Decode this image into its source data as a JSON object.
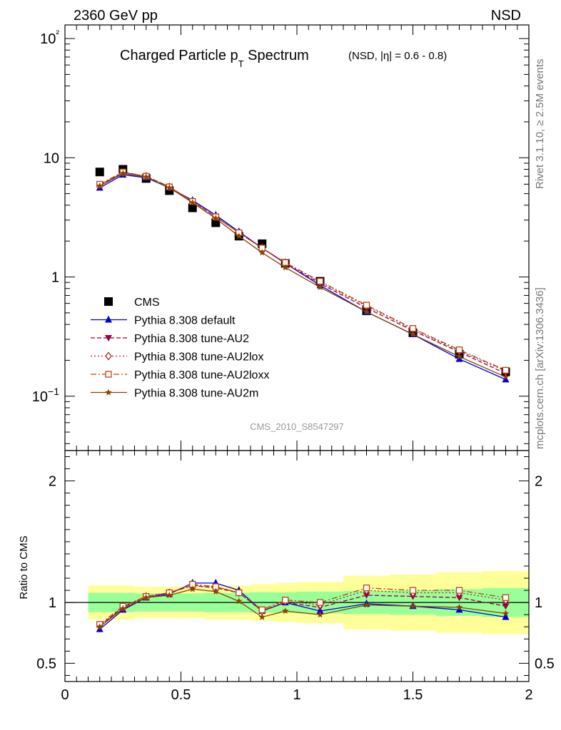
{
  "header": {
    "left_label": "2360 GeV pp",
    "right_label": "NSD",
    "side_label_top": "Rivet 3.1.10, ≥ 2.5M events",
    "side_label_bottom": "mcplots.cern.ch [arXiv:1306.3436]"
  },
  "chart_data": [
    {
      "type": "scatter",
      "title_main": "Charged Particle p",
      "title_sub": "T",
      "title_main2": " Spectrum",
      "title_extra": "(NSD, |η| = 0.6 - 0.8)",
      "watermark": "CMS_2010_S8547297",
      "scale": "log",
      "ylim": [
        0.035,
        130
      ],
      "xlim": [
        0,
        2
      ],
      "ytick_labels": [
        "10−1",
        "1",
        "10",
        "10²"
      ],
      "legend_placement": "center-left",
      "x": [
        0.15,
        0.25,
        0.35,
        0.45,
        0.55,
        0.65,
        0.75,
        0.85,
        0.95,
        1.1,
        1.3,
        1.5,
        1.7,
        1.9
      ],
      "series": [
        {
          "name": "CMS",
          "color": "#000000",
          "marker": "square",
          "line": "none",
          "values": [
            7.6,
            8.0,
            6.7,
            5.3,
            3.8,
            2.85,
            2.2,
            1.9,
            1.3,
            0.92,
            0.52,
            0.34,
            0.225,
            0.16
          ]
        },
        {
          "name": "Pythia 8.308 default",
          "color": "#0000dd",
          "marker": "triangle-up",
          "line": "solid",
          "values": [
            5.6,
            7.2,
            6.8,
            5.6,
            4.4,
            3.3,
            2.4,
            1.75,
            1.3,
            0.85,
            0.51,
            0.33,
            0.205,
            0.138
          ]
        },
        {
          "name": "Pythia 8.308 tune-AU2",
          "color": "#990044",
          "marker": "triangle-down",
          "line": "dashed",
          "values": [
            5.9,
            7.5,
            7.0,
            5.7,
            4.3,
            3.2,
            2.35,
            1.75,
            1.3,
            0.88,
            0.55,
            0.355,
            0.235,
            0.155
          ]
        },
        {
          "name": "Pythia 8.308 tune-AU2lox",
          "color": "#aa2233",
          "marker": "diamond-open",
          "line": "dotted",
          "values": [
            5.9,
            7.5,
            7.0,
            5.7,
            4.3,
            3.2,
            2.35,
            1.75,
            1.32,
            0.9,
            0.57,
            0.365,
            0.24,
            0.163
          ]
        },
        {
          "name": "Pythia 8.308 tune-AU2loxx",
          "color": "#bb4411",
          "marker": "square-open",
          "line": "dashdot",
          "values": [
            6.0,
            7.6,
            7.0,
            5.7,
            4.3,
            3.2,
            2.35,
            1.75,
            1.32,
            0.92,
            0.58,
            0.37,
            0.245,
            0.165
          ]
        },
        {
          "name": "Pythia 8.308 tune-AU2m",
          "color": "#884400",
          "marker": "star",
          "line": "solid",
          "values": [
            5.8,
            7.4,
            6.9,
            5.6,
            4.2,
            3.1,
            2.2,
            1.6,
            1.2,
            0.82,
            0.51,
            0.33,
            0.215,
            0.145
          ]
        }
      ]
    },
    {
      "type": "scatter",
      "ylabel": "Ratio to CMS",
      "ylim": [
        0.35,
        2.25
      ],
      "xlim": [
        0,
        2
      ],
      "yticks": [
        0.5,
        1,
        2
      ],
      "ytick_labels": [
        "0.5",
        "1",
        "2"
      ],
      "xticks": [
        0,
        0.5,
        1,
        1.5,
        2
      ],
      "xtick_labels": [
        "0",
        "0.5",
        "1",
        "1.5",
        "2"
      ],
      "reference": 1,
      "bins": [
        [
          0.1,
          0.2
        ],
        [
          0.2,
          0.3
        ],
        [
          0.3,
          0.4
        ],
        [
          0.4,
          0.5
        ],
        [
          0.5,
          0.6
        ],
        [
          0.6,
          0.7
        ],
        [
          0.7,
          0.8
        ],
        [
          0.8,
          0.9
        ],
        [
          0.9,
          1.0
        ],
        [
          1.0,
          1.2
        ],
        [
          1.2,
          1.4
        ],
        [
          1.4,
          1.6
        ],
        [
          1.6,
          1.8
        ],
        [
          1.8,
          2.0
        ]
      ],
      "band_inner": [
        0.08,
        0.08,
        0.075,
        0.075,
        0.075,
        0.08,
        0.08,
        0.085,
        0.085,
        0.09,
        0.095,
        0.1,
        0.11,
        0.12
      ],
      "band_outer": [
        0.14,
        0.14,
        0.13,
        0.13,
        0.13,
        0.14,
        0.14,
        0.15,
        0.16,
        0.17,
        0.22,
        0.23,
        0.25,
        0.26
      ],
      "band_inner_color": "#99ff99",
      "band_outer_color": "#ffff99",
      "x": [
        0.15,
        0.25,
        0.35,
        0.45,
        0.55,
        0.65,
        0.75,
        0.85,
        0.95,
        1.1,
        1.3,
        1.5,
        1.7,
        1.9
      ],
      "series": [
        {
          "name": "Pythia 8.308 default",
          "color": "#0000dd",
          "marker": "triangle-up",
          "line": "solid",
          "values": [
            0.78,
            0.94,
            1.04,
            1.07,
            1.16,
            1.16,
            1.1,
            0.93,
            1.0,
            0.93,
            0.99,
            0.97,
            0.94,
            0.88
          ]
        },
        {
          "name": "Pythia 8.308 tune-AU2",
          "color": "#990044",
          "marker": "triangle-down",
          "line": "dashed",
          "values": [
            0.81,
            0.96,
            1.05,
            1.08,
            1.14,
            1.12,
            1.08,
            0.93,
            1.0,
            0.96,
            1.06,
            1.05,
            1.04,
            0.97
          ]
        },
        {
          "name": "Pythia 8.308 tune-AU2lox",
          "color": "#aa2233",
          "marker": "diamond-open",
          "line": "dotted",
          "values": [
            0.81,
            0.96,
            1.05,
            1.08,
            1.14,
            1.13,
            1.08,
            0.93,
            1.01,
            0.98,
            1.1,
            1.08,
            1.08,
            1.02
          ]
        },
        {
          "name": "Pythia 8.308 tune-AU2loxx",
          "color": "#bb4411",
          "marker": "square-open",
          "line": "dashdot",
          "values": [
            0.82,
            0.97,
            1.05,
            1.08,
            1.15,
            1.13,
            1.08,
            0.94,
            1.02,
            1.0,
            1.12,
            1.1,
            1.1,
            1.04
          ]
        },
        {
          "name": "Pythia 8.308 tune-AU2m",
          "color": "#884400",
          "marker": "star",
          "line": "solid",
          "values": [
            0.8,
            0.95,
            1.04,
            1.06,
            1.11,
            1.09,
            1.01,
            0.88,
            0.93,
            0.9,
            0.98,
            0.97,
            0.96,
            0.91
          ]
        }
      ]
    }
  ]
}
